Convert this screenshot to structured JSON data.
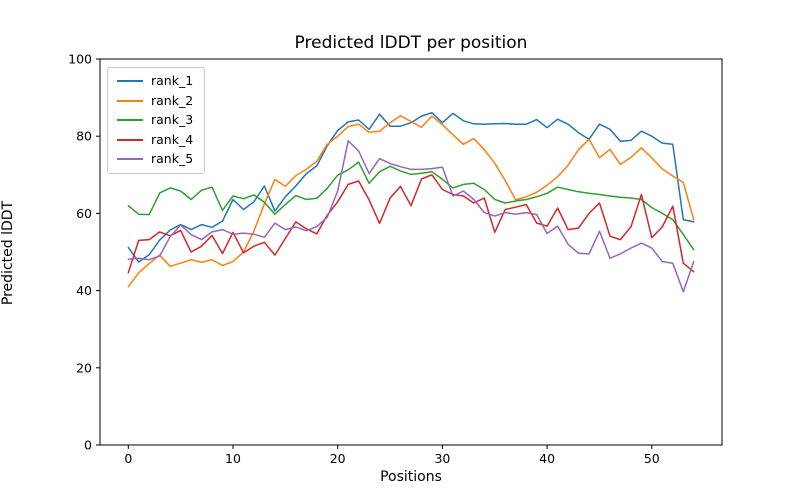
{
  "chart_data": {
    "type": "line",
    "title": "Predicted lDDT per position",
    "xlabel": "Positions",
    "ylabel": "Predicted lDDT",
    "xlim": [
      -2.7,
      56.7
    ],
    "ylim": [
      0,
      100
    ],
    "xticks": [
      0,
      10,
      20,
      30,
      40,
      50
    ],
    "yticks": [
      0,
      20,
      40,
      60,
      80,
      100
    ],
    "grid": false,
    "legend_position": "upper left",
    "x": [
      0,
      1,
      2,
      3,
      4,
      5,
      6,
      7,
      8,
      9,
      10,
      11,
      12,
      13,
      14,
      15,
      16,
      17,
      18,
      19,
      20,
      21,
      22,
      23,
      24,
      25,
      26,
      27,
      28,
      29,
      30,
      31,
      32,
      33,
      34,
      35,
      36,
      37,
      38,
      39,
      40,
      41,
      42,
      43,
      44,
      45,
      46,
      47,
      48,
      49,
      50,
      51,
      52,
      53,
      54
    ],
    "series": [
      {
        "name": "rank_1",
        "color": "#1f77b4",
        "values": [
          51.2,
          47.4,
          49.3,
          53.1,
          55.7,
          57.1,
          55.8,
          57.1,
          56.4,
          58.0,
          63.6,
          61.0,
          63.0,
          67.1,
          60.6,
          64.3,
          67.1,
          70.3,
          72.3,
          77.5,
          81.5,
          83.7,
          84.2,
          81.8,
          85.7,
          82.6,
          82.6,
          83.5,
          85.2,
          86.1,
          83.5,
          85.9,
          84.0,
          83.2,
          83.1,
          83.2,
          83.3,
          83.1,
          83.1,
          84.3,
          82.2,
          84.4,
          83.1,
          80.9,
          79.2,
          83.1,
          81.8,
          78.7,
          78.9,
          81.3,
          80.0,
          78.2,
          77.9,
          58.4,
          57.8
        ]
      },
      {
        "name": "rank_2",
        "color": "#ff7f0e",
        "values": [
          41.0,
          44.6,
          47.0,
          49.2,
          46.3,
          47.1,
          48.0,
          47.3,
          48.0,
          46.5,
          47.5,
          50.0,
          55.4,
          62.5,
          68.8,
          67.0,
          69.8,
          71.4,
          73.5,
          77.9,
          80.0,
          82.5,
          83.1,
          81.0,
          81.3,
          83.5,
          85.3,
          83.8,
          82.3,
          85.2,
          83.0,
          80.4,
          77.9,
          79.4,
          76.5,
          73.0,
          68.5,
          63.5,
          64.3,
          65.5,
          67.3,
          69.5,
          72.5,
          76.5,
          79.2,
          74.4,
          76.6,
          72.7,
          74.5,
          77.0,
          74.4,
          71.5,
          69.7,
          68.0,
          58.4
        ]
      },
      {
        "name": "rank_3",
        "color": "#2ca02c",
        "values": [
          62.0,
          59.8,
          59.7,
          65.3,
          66.6,
          65.8,
          63.6,
          66.0,
          66.8,
          60.8,
          64.5,
          63.8,
          64.8,
          62.9,
          59.8,
          62.3,
          64.6,
          63.6,
          63.9,
          66.5,
          69.9,
          71.3,
          73.3,
          67.8,
          70.8,
          72.2,
          71.0,
          70.1,
          70.4,
          70.8,
          68.8,
          66.6,
          67.5,
          67.8,
          66.2,
          63.6,
          62.7,
          63.2,
          63.6,
          64.3,
          65.2,
          66.8,
          66.2,
          65.6,
          65.2,
          64.9,
          64.5,
          64.2,
          64.0,
          63.6,
          61.5,
          60.0,
          58.4,
          54.5,
          50.6
        ]
      },
      {
        "name": "rank_4",
        "color": "#d62728",
        "values": [
          44.6,
          53.0,
          53.2,
          55.2,
          54.2,
          55.6,
          50.0,
          51.5,
          54.3,
          49.6,
          55.1,
          49.8,
          51.5,
          52.5,
          49.2,
          53.5,
          57.8,
          56.0,
          54.7,
          59.5,
          63.0,
          67.5,
          68.4,
          63.5,
          57.4,
          64.0,
          67.0,
          62.0,
          68.9,
          70.0,
          66.2,
          64.9,
          64.5,
          62.7,
          64.0,
          55.1,
          61.0,
          61.6,
          62.3,
          57.5,
          56.7,
          61.4,
          55.8,
          56.2,
          60.0,
          62.7,
          54.1,
          53.2,
          56.5,
          64.9,
          53.7,
          56.5,
          61.9,
          47.1,
          44.9
        ]
      },
      {
        "name": "rank_5",
        "color": "#9467bd",
        "values": [
          48.1,
          48.4,
          48.0,
          49.0,
          54.0,
          57.0,
          54.5,
          53.2,
          55.2,
          55.8,
          54.6,
          54.9,
          54.6,
          53.8,
          57.5,
          55.8,
          56.5,
          55.5,
          56.6,
          59.0,
          65.8,
          78.8,
          76.2,
          70.3,
          74.2,
          72.9,
          72.1,
          71.4,
          71.4,
          71.6,
          72.0,
          64.5,
          65.8,
          63.6,
          60.2,
          59.3,
          60.2,
          59.8,
          60.2,
          59.7,
          54.8,
          56.7,
          52.0,
          49.7,
          49.5,
          55.4,
          48.4,
          49.5,
          51.0,
          52.3,
          51.0,
          47.5,
          47.1,
          39.7,
          47.5
        ]
      }
    ]
  }
}
